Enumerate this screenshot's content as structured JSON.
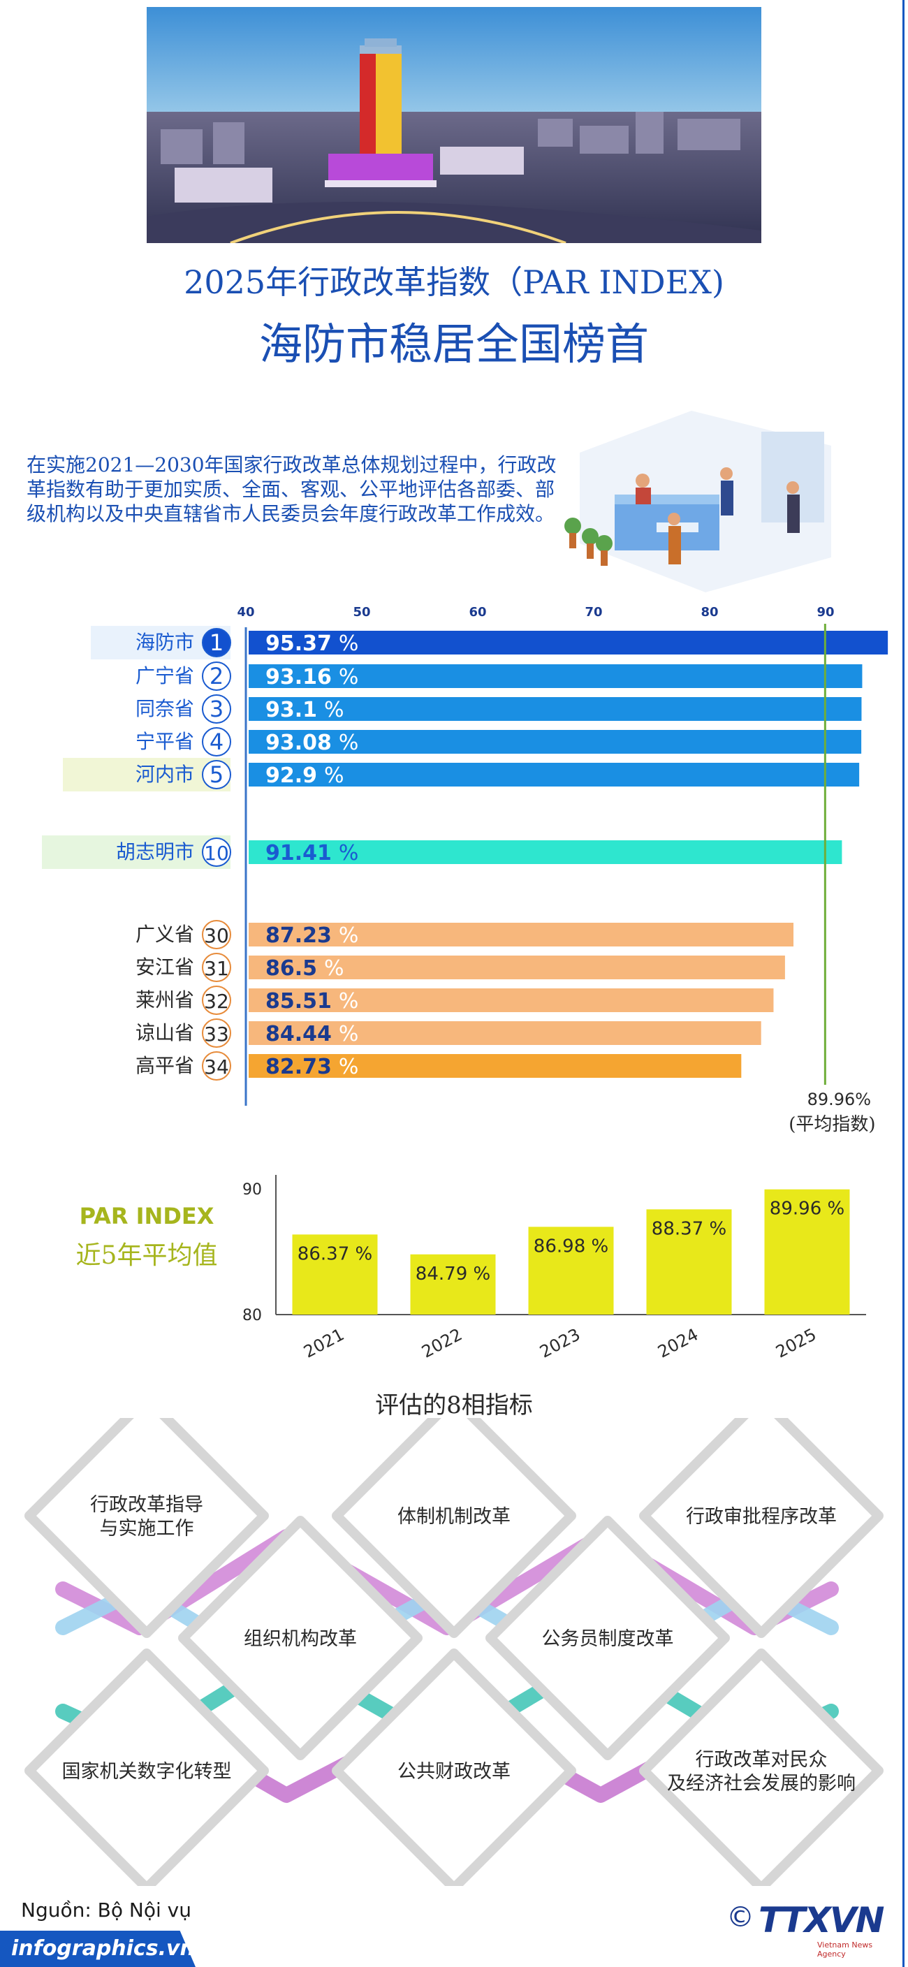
{
  "header": {
    "title_line1": "2025年行政改革指数（PAR INDEX)",
    "title_line2": "海防市稳居全国榜首"
  },
  "intro": "在实施2021—2030年国家行政改革总体规划过程中，行政改革指数有助于更加实质、全面、客观、公平地评估各部委、部级机构以及中央直辖省市人民委员会年度行政改革工作成效。",
  "chart_data": [
    {
      "type": "bar",
      "orientation": "horizontal",
      "axis_ticks": [
        40,
        50,
        60,
        70,
        80,
        90
      ],
      "xlim": [
        40,
        95.37
      ],
      "value_suffix": " %",
      "average_line": {
        "value": 89.96,
        "label": "89.96%",
        "sublabel": "(平均指数)"
      },
      "colors": {
        "first": "#1251cf",
        "top5": "#1a8fe3",
        "hcm": "#2ee6cf",
        "bottom": "#f7b77c",
        "last": "#f5a531",
        "avg": "#6fae3a"
      },
      "rows": [
        {
          "name": "海防市",
          "rank": "1",
          "value": 95.37,
          "label": "95.37",
          "group": "first"
        },
        {
          "name": "广宁省",
          "rank": "2",
          "value": 93.16,
          "label": "93.16",
          "group": "top5"
        },
        {
          "name": "同奈省",
          "rank": "3",
          "value": 93.1,
          "label": "93.1",
          "group": "top5"
        },
        {
          "name": "宁平省",
          "rank": "4",
          "value": 93.08,
          "label": "93.08",
          "group": "top5"
        },
        {
          "name": "河内市",
          "rank": "5",
          "value": 92.9,
          "label": "92.9",
          "group": "top5"
        },
        {
          "name": "胡志明市",
          "rank": "10",
          "value": 91.41,
          "label": "91.41",
          "group": "hcm"
        },
        {
          "name": "广义省",
          "rank": "30",
          "value": 87.23,
          "label": "87.23",
          "group": "bottom"
        },
        {
          "name": "安江省",
          "rank": "31",
          "value": 86.5,
          "label": "86.5",
          "group": "bottom"
        },
        {
          "name": "莱州省",
          "rank": "32",
          "value": 85.51,
          "label": "85.51",
          "group": "bottom"
        },
        {
          "name": "谅山省",
          "rank": "33",
          "value": 84.44,
          "label": "84.44",
          "group": "bottom"
        },
        {
          "name": "高平省",
          "rank": "34",
          "value": 82.73,
          "label": "82.73",
          "group": "last"
        }
      ]
    },
    {
      "type": "bar",
      "title": "PAR INDEX",
      "subtitle": "近5年平均值",
      "ylim": [
        80,
        90
      ],
      "y_ticks": [
        80,
        90
      ],
      "bar_color": "#e8e81a",
      "categories": [
        "2021",
        "2022",
        "2023",
        "2024",
        "2025"
      ],
      "values": [
        86.37,
        84.79,
        86.98,
        88.37,
        89.96
      ],
      "value_labels": [
        "86.37 %",
        "84.79 %",
        "86.98 %",
        "88.37 %",
        "89.96 %"
      ]
    }
  ],
  "indicators": {
    "title": "评估的8相指标",
    "items": [
      {
        "lines": [
          "行政改革指导",
          "与实施工作"
        ]
      },
      {
        "lines": [
          "体制机制改革"
        ]
      },
      {
        "lines": [
          "行政审批程序改革"
        ]
      },
      {
        "lines": [
          "组织机构改革"
        ]
      },
      {
        "lines": [
          "公务员制度改革"
        ]
      },
      {
        "lines": [
          "国家机关数字化转型"
        ]
      },
      {
        "lines": [
          "公共财政改革"
        ]
      },
      {
        "lines": [
          "行政改革对民众",
          "及经济社会发展的影响"
        ]
      }
    ]
  },
  "footer": {
    "source": "Nguồn: Bộ Nội vụ",
    "site": "infographics.vn",
    "logo_copyright": "©",
    "logo_text": "TTXVN",
    "logo_sub": "Vietnam News Agency"
  }
}
